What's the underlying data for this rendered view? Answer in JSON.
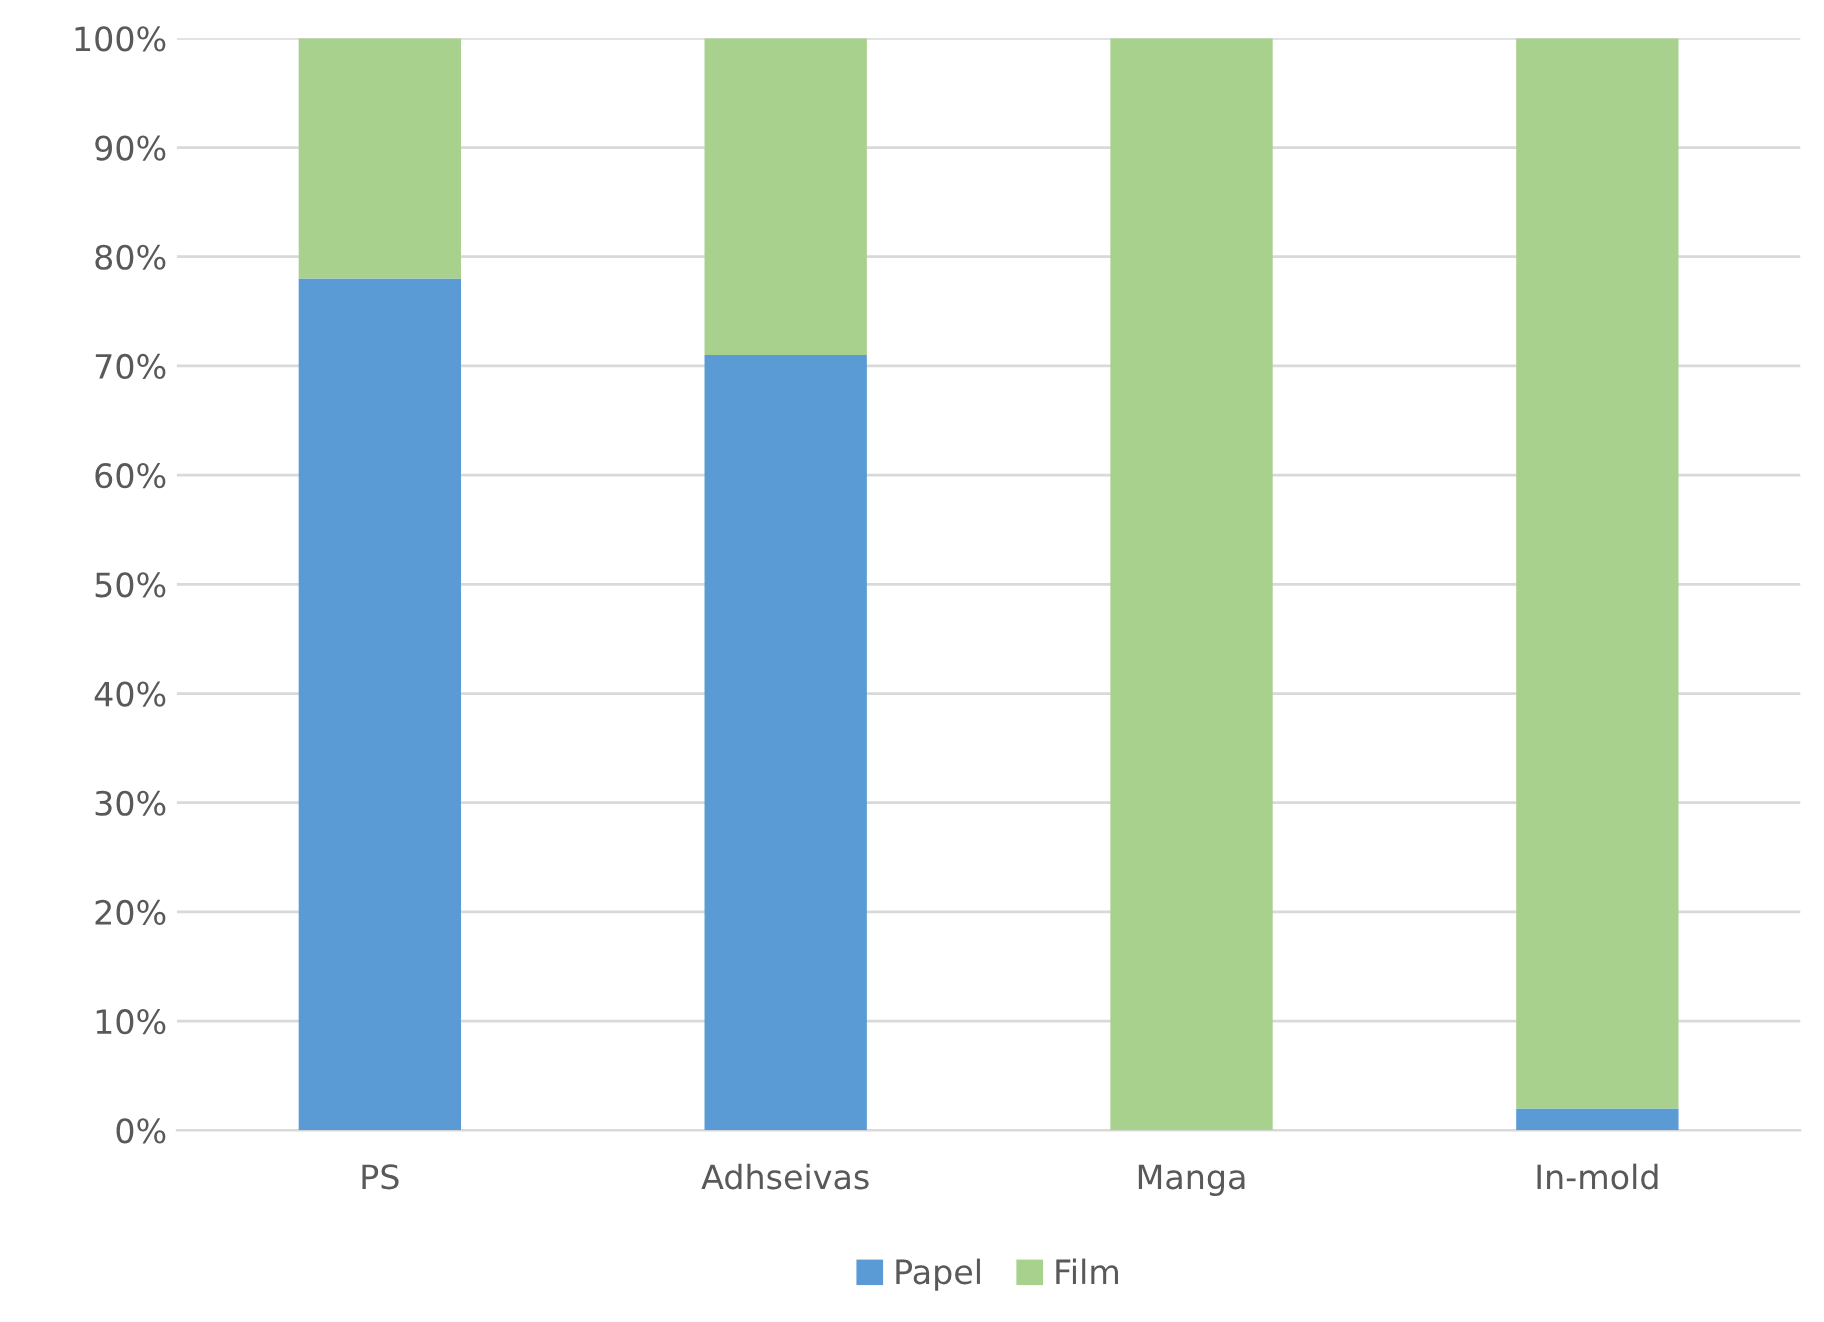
{
  "chart_data": {
    "type": "bar",
    "stacked": true,
    "categories": [
      "PS",
      "Adhseivas",
      "Manga",
      "In-mold"
    ],
    "series": [
      {
        "name": "Papel",
        "color": "#5b9bd5",
        "values": [
          78,
          71,
          0,
          2
        ]
      },
      {
        "name": "Film",
        "color": "#a9d18e",
        "values": [
          22,
          29,
          100,
          98
        ]
      }
    ],
    "ylim": [
      0,
      100
    ],
    "yticks": [
      {
        "value": 0,
        "label": "0%"
      },
      {
        "value": 10,
        "label": "10%"
      },
      {
        "value": 20,
        "label": "20%"
      },
      {
        "value": 30,
        "label": "30%"
      },
      {
        "value": 40,
        "label": "40%"
      },
      {
        "value": 50,
        "label": "50%"
      },
      {
        "value": 60,
        "label": "60%"
      },
      {
        "value": 70,
        "label": "70%"
      },
      {
        "value": 80,
        "label": "80%"
      },
      {
        "value": 90,
        "label": "90%"
      },
      {
        "value": 100,
        "label": "100%"
      }
    ],
    "grid": "y",
    "legend": "bottom"
  }
}
